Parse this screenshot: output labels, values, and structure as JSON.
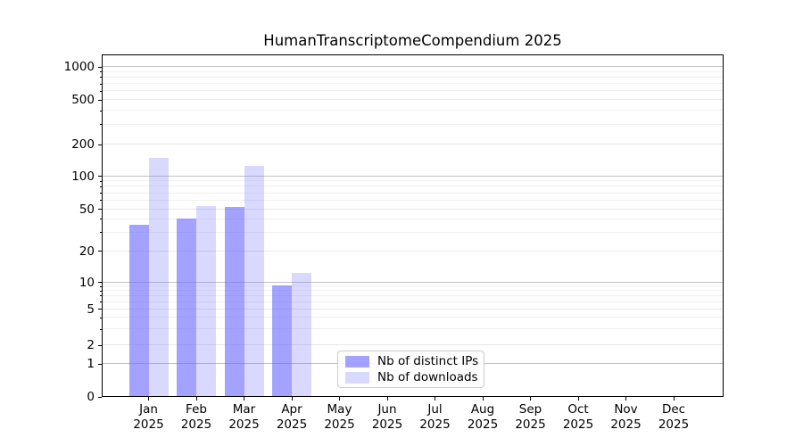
{
  "title": "HumanTranscriptomeCompendium 2025",
  "chart_data": {
    "type": "bar",
    "title": "HumanTranscriptomeCompendium 2025",
    "xlabel": "",
    "ylabel": "",
    "yscale": "symlog",
    "ylim": [
      0,
      1300
    ],
    "grid": true,
    "legend_position": "lower center",
    "categories": [
      "Jan 2025",
      "Feb 2025",
      "Mar 2025",
      "Apr 2025",
      "May 2025",
      "Jun 2025",
      "Jul 2025",
      "Aug 2025",
      "Sep 2025",
      "Oct 2025",
      "Nov 2025",
      "Dec 2025"
    ],
    "series": [
      {
        "name": "Nb of distinct IPs",
        "base_color": "#6666ff",
        "alpha": 0.6,
        "blended_color": "#a8a8fa",
        "values": [
          35,
          40,
          51,
          9,
          0,
          0,
          0,
          0,
          0,
          0,
          0,
          0
        ]
      },
      {
        "name": "Nb of downloads",
        "base_color": "#6666ff",
        "alpha": 0.25,
        "blended_color": "#dbdbfc",
        "values": [
          145,
          52,
          123,
          12,
          0,
          0,
          0,
          0,
          0,
          0,
          0,
          0
        ]
      }
    ],
    "y_ticks": [
      0,
      1,
      2,
      5,
      10,
      20,
      50,
      100,
      200,
      500,
      1000
    ],
    "y_decade_ticks": [
      1,
      10,
      100,
      1000
    ],
    "y_minor_ticks": [
      3,
      4,
      6,
      7,
      8,
      9,
      30,
      40,
      60,
      70,
      80,
      90,
      300,
      400,
      600,
      700,
      800,
      900
    ]
  },
  "colors": {
    "bar_base": "#6666ff",
    "grid_decade": "#c3c3c3",
    "grid_light": "#e7e7e7",
    "axis": "#000000",
    "legend_border": "#cccccc"
  }
}
